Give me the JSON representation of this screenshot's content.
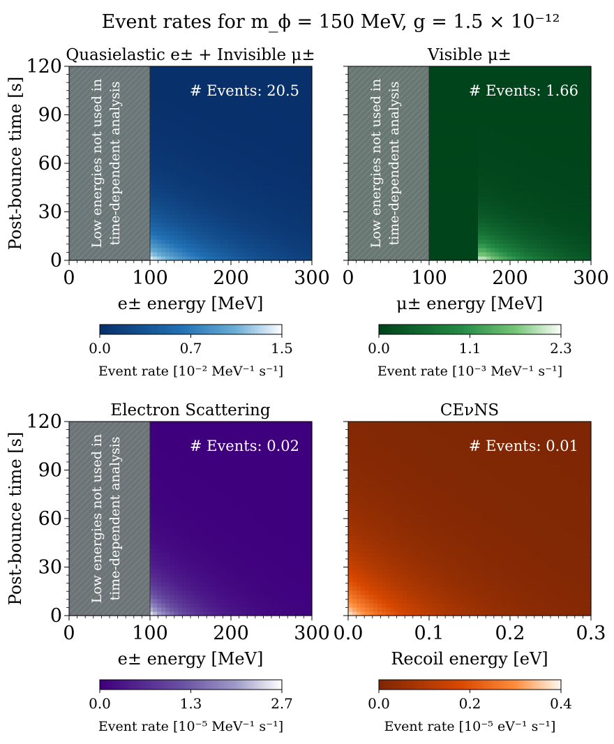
{
  "figure": {
    "title": "Event rates for m_ϕ = 150 MeV, g = 1.5 × 10⁻¹²"
  },
  "chart_data": [
    {
      "type": "heatmap",
      "title": "Quasielastic e± + Invisible μ±",
      "xlabel": "e± energy [MeV]",
      "ylabel": "Post-bounce time [s]",
      "xlim": [
        0,
        300
      ],
      "ylim": [
        0,
        120
      ],
      "xticks": [
        "0",
        "100",
        "200",
        "300"
      ],
      "yticks": [
        "0",
        "30",
        "60",
        "90",
        "120"
      ],
      "events_label": "# Events: 20.5",
      "masked_region": {
        "x": [
          0,
          100
        ],
        "note_line1": "Low energies not used in",
        "note_line2": "time-dependent analysis"
      },
      "colormap": "Blues_r",
      "colors": {
        "low": "#08306b",
        "mid": "#2171b5",
        "mid2": "#6baed6",
        "high": "#f7fbff"
      },
      "peak": {
        "x": 100,
        "y": 0
      },
      "spread": {
        "x": 130,
        "y": 24
      },
      "threshold": 100,
      "colorbar": {
        "ticks": [
          "0.0",
          "0.7",
          "1.5"
        ],
        "range": [
          0,
          1.5
        ],
        "label": "Event rate [10⁻² MeV⁻¹ s⁻¹]"
      }
    },
    {
      "type": "heatmap",
      "title": "Visible μ±",
      "xlabel": "μ± energy [MeV]",
      "ylabel": "",
      "xlim": [
        0,
        300
      ],
      "ylim": [
        0,
        120
      ],
      "xticks": [
        "0",
        "100",
        "200",
        "300"
      ],
      "yticks": [],
      "events_label": "# Events: 1.66",
      "masked_region": {
        "x": [
          0,
          100
        ],
        "note_line1": "Low energies not used in",
        "note_line2": "time-dependent analysis"
      },
      "colormap": "Greens_r",
      "colors": {
        "low": "#00441b",
        "mid": "#238b45",
        "mid2": "#74c476",
        "high": "#f7fcf5"
      },
      "peak": {
        "x": 165,
        "y": 0
      },
      "spread": {
        "x": 90,
        "y": 16
      },
      "threshold": 160,
      "colorbar": {
        "ticks": [
          "0.0",
          "1.1",
          "2.3"
        ],
        "range": [
          0,
          2.3
        ],
        "label": "Event rate [10⁻³ MeV⁻¹ s⁻¹]"
      }
    },
    {
      "type": "heatmap",
      "title": "Electron Scattering",
      "xlabel": "e± energy [MeV]",
      "ylabel": "Post-bounce time [s]",
      "xlim": [
        0,
        300
      ],
      "ylim": [
        0,
        120
      ],
      "xticks": [
        "0",
        "100",
        "200",
        "300"
      ],
      "yticks": [
        "0",
        "30",
        "60",
        "90",
        "120"
      ],
      "events_label": "# Events: 0.02",
      "masked_region": {
        "x": [
          0,
          100
        ],
        "note_line1": "Low energies not used in",
        "note_line2": "time-dependent analysis"
      },
      "colormap": "Purples_r",
      "colors": {
        "low": "#3f007d",
        "mid": "#6a51a3",
        "mid2": "#9e9ac8",
        "high": "#fcfbfd"
      },
      "peak": {
        "x": 100,
        "y": 0
      },
      "spread": {
        "x": 70,
        "y": 20
      },
      "threshold": 100,
      "colorbar": {
        "ticks": [
          "0.0",
          "1.3",
          "2.7"
        ],
        "range": [
          0,
          2.7
        ],
        "label": "Event rate [10⁻⁵ MeV⁻¹ s⁻¹]"
      }
    },
    {
      "type": "heatmap",
      "title": "CEνNS",
      "xlabel": "Recoil energy [eV]",
      "ylabel": "",
      "xlim": [
        0,
        0.3
      ],
      "ylim": [
        0,
        120
      ],
      "xticks": [
        "0.0",
        "0.1",
        "0.2",
        "0.3"
      ],
      "yticks": [],
      "events_label": "# Events: 0.01",
      "masked_region": null,
      "colormap": "Oranges_r",
      "colors": {
        "low": "#7f2704",
        "mid": "#d94801",
        "mid2": "#fd8d3c",
        "high": "#fff5eb"
      },
      "peak": {
        "x": 0,
        "y": 0
      },
      "spread": {
        "x": 0.12,
        "y": 34
      },
      "threshold": 0,
      "colorbar": {
        "ticks": [
          "0.0",
          "0.2",
          "0.4"
        ],
        "range": [
          0,
          0.4
        ],
        "label": "Event rate [10⁻⁵ eV⁻¹ s⁻¹]"
      }
    }
  ]
}
